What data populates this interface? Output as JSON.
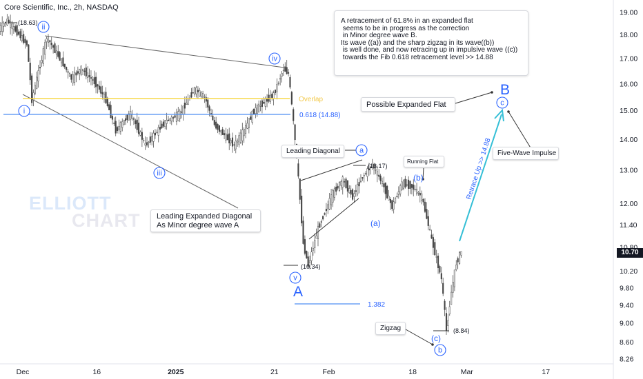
{
  "header": {
    "title": "Core Scientific, Inc., 2h, NASDAQ"
  },
  "note": {
    "lines": [
      "A retracement of 61.8% in an expanded flat",
      " seems to be in progress as the correction",
      " in Minor degree wave B.",
      "",
      "Its wave ((a)) and the sharp zigzag in its wave((b))",
      " is well done, and now retracing up in impulsive wave ((c))",
      " towards the Fib 0.618 retracement level >> 14.88"
    ]
  },
  "watermark": {
    "line1": "ELLIOTT",
    "line2": "CHART"
  },
  "labels": {
    "leading_expanded_diagonal_1": "Leading Expanded Diagonal",
    "leading_expanded_diagonal_2": "As Minor degree wave A",
    "possible_expanded_flat": "Possible Expanded Flat",
    "leading_diagonal": "Leading Diagonal",
    "running_flat": "Running Flat",
    "five_wave_impulse": "Five-Wave Impulse",
    "zigzag": "Zigzag",
    "overlap": "Overlap",
    "fib_618": "0.618 (14.88)",
    "fib_1382": "1.382",
    "retrace_up": "Retrace Up >> 14.88",
    "price_18_63": "(18.63)",
    "price_13_17": "(13.17)",
    "price_10_34": "(10.34)",
    "price_8_84": "(8.84)",
    "wave_A": "A",
    "wave_B": "B"
  },
  "circled": {
    "ii": "ii",
    "i": "i",
    "iii": "iii",
    "iv": "iv",
    "v": "v",
    "a": "a",
    "b": "b",
    "c": "c"
  },
  "wave_plain": {
    "b": "(b)",
    "a": "(a)",
    "c": "(c)"
  },
  "current_price": "10.70",
  "colors": {
    "wave": "#2962ff",
    "overlap": "#f7d84a",
    "fib": "#4d8ef2",
    "retrace": "#35bfd6",
    "candle": "#444444",
    "trend": "#555555"
  },
  "chart_data": {
    "type": "candlestick",
    "title": "Core Scientific, Inc., 2h, NASDAQ",
    "y_axis": {
      "ticks": [
        19.0,
        18.0,
        17.0,
        16.0,
        15.0,
        14.0,
        13.0,
        12.0,
        11.4,
        10.8,
        10.2,
        9.8,
        9.4,
        9.0,
        8.6,
        8.26
      ],
      "scale": "log",
      "range": [
        8.26,
        19.0
      ]
    },
    "x_axis": {
      "ticks": [
        "Dec",
        "16",
        "2025",
        "21",
        "Feb",
        "18",
        "Mar",
        "17"
      ]
    },
    "close_path": [
      {
        "date": "2024-11-26",
        "close": 18.2
      },
      {
        "date": "2024-11-28",
        "close": 18.63
      },
      {
        "date": "2024-12-02",
        "close": 17.6
      },
      {
        "date": "2024-12-03",
        "close": 15.4
      },
      {
        "date": "2024-12-05",
        "close": 17.0
      },
      {
        "date": "2024-12-06",
        "close": 17.9
      },
      {
        "date": "2024-12-09",
        "close": 16.9
      },
      {
        "date": "2024-12-11",
        "close": 16.2
      },
      {
        "date": "2024-12-13",
        "close": 16.6
      },
      {
        "date": "2024-12-16",
        "close": 16.0
      },
      {
        "date": "2024-12-18",
        "close": 15.4
      },
      {
        "date": "2024-12-20",
        "close": 14.3
      },
      {
        "date": "2024-12-23",
        "close": 14.9
      },
      {
        "date": "2024-12-26",
        "close": 13.8
      },
      {
        "date": "2024-12-30",
        "close": 14.6
      },
      {
        "date": "2025-01-02",
        "close": 14.9
      },
      {
        "date": "2025-01-05",
        "close": 15.8
      },
      {
        "date": "2025-01-07",
        "close": 15.5
      },
      {
        "date": "2025-01-09",
        "close": 14.5
      },
      {
        "date": "2025-01-13",
        "close": 13.8
      },
      {
        "date": "2025-01-15",
        "close": 14.3
      },
      {
        "date": "2025-01-17",
        "close": 15.0
      },
      {
        "date": "2025-01-21",
        "close": 15.6
      },
      {
        "date": "2025-01-23",
        "close": 16.6
      },
      {
        "date": "2025-01-24",
        "close": 16.4
      },
      {
        "date": "2025-01-27",
        "close": 10.9
      },
      {
        "date": "2025-01-28",
        "close": 10.34
      },
      {
        "date": "2025-01-30",
        "close": 11.3
      },
      {
        "date": "2025-02-02",
        "close": 12.3
      },
      {
        "date": "2025-02-04",
        "close": 12.7
      },
      {
        "date": "2025-02-06",
        "close": 12.2
      },
      {
        "date": "2025-02-08",
        "close": 12.8
      },
      {
        "date": "2025-02-10",
        "close": 13.17
      },
      {
        "date": "2025-02-12",
        "close": 12.6
      },
      {
        "date": "2025-02-14",
        "close": 11.9
      },
      {
        "date": "2025-02-16",
        "close": 12.6
      },
      {
        "date": "2025-02-18",
        "close": 12.5
      },
      {
        "date": "2025-02-20",
        "close": 12.2
      },
      {
        "date": "2025-02-22",
        "close": 11.0
      },
      {
        "date": "2025-02-24",
        "close": 10.0
      },
      {
        "date": "2025-02-25",
        "close": 8.84
      },
      {
        "date": "2025-02-26",
        "close": 9.7
      },
      {
        "date": "2025-02-27",
        "close": 10.4
      },
      {
        "date": "2025-02-28",
        "close": 10.7
      }
    ],
    "levels": [
      {
        "name": "Overlap",
        "value": 15.5
      },
      {
        "name": "0.618 (14.88)",
        "value": 14.88
      },
      {
        "name": "1.382",
        "value": 9.55
      }
    ]
  }
}
